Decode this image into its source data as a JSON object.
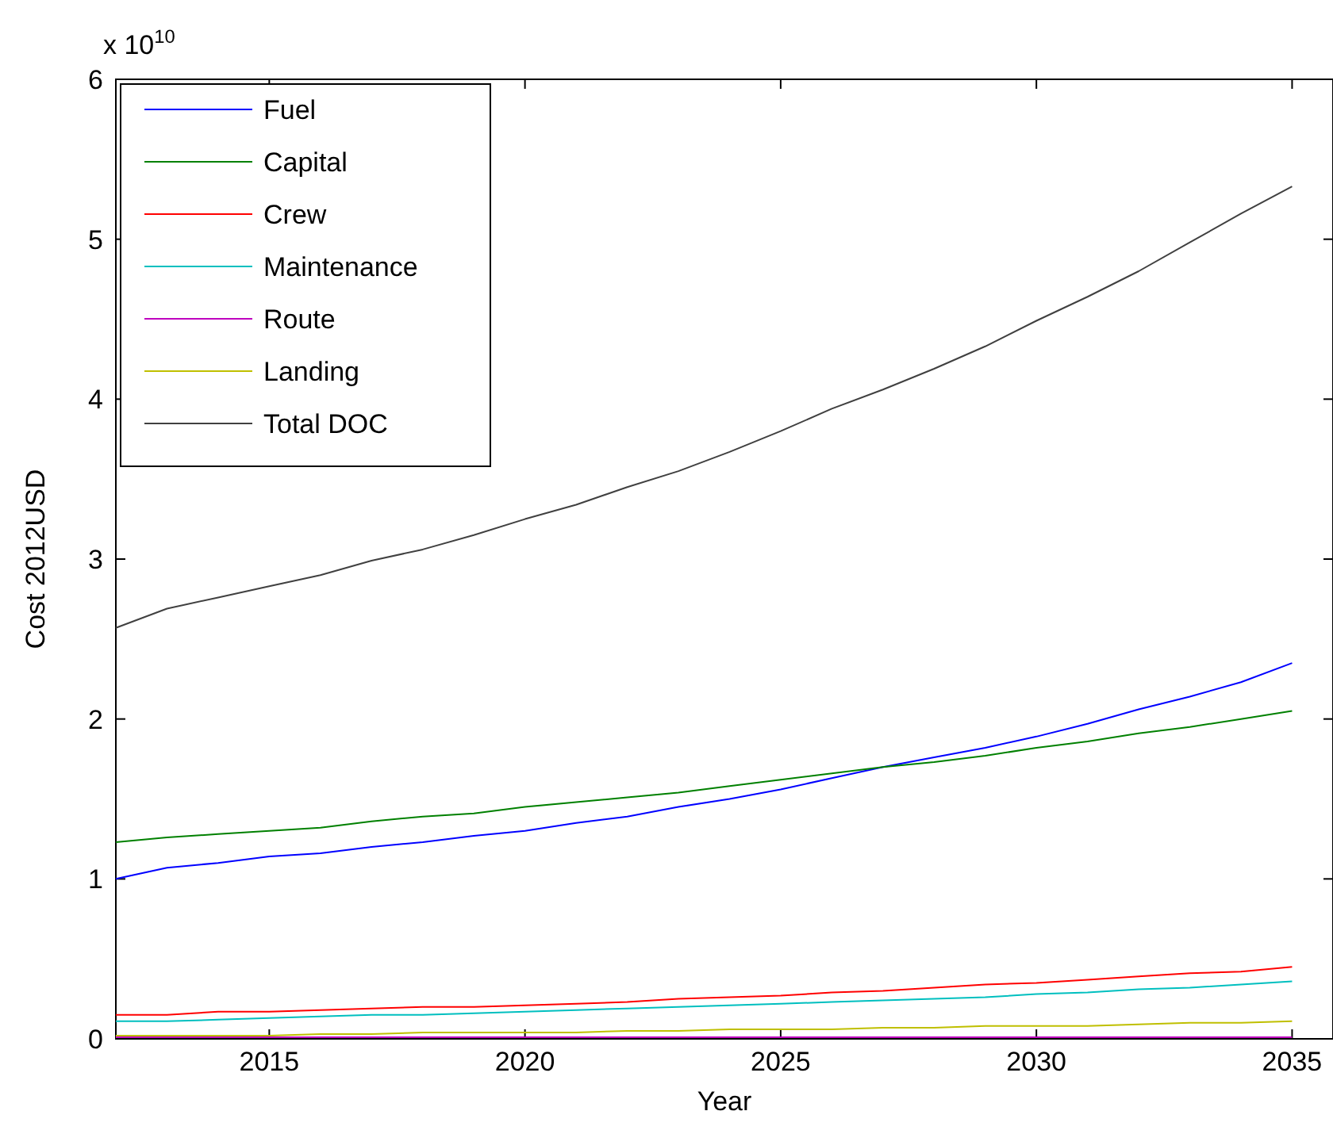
{
  "chart_data": {
    "type": "line",
    "xlabel": "Year",
    "ylabel": "Cost 2012USD",
    "annotations": [
      "x 10$^{10}$"
    ],
    "x": [
      2012,
      2013,
      2014,
      2015,
      2016,
      2017,
      2018,
      2019,
      2020,
      2021,
      2022,
      2023,
      2024,
      2025,
      2026,
      2027,
      2028,
      2029,
      2030,
      2031,
      2032,
      2033,
      2034,
      2035
    ],
    "xlim": [
      2012,
      2035.8
    ],
    "xticks": [
      2015,
      2020,
      2025,
      2030,
      2035
    ],
    "ylim": [
      0,
      6
    ],
    "yticks": [
      0,
      1,
      2,
      3,
      4,
      5,
      6
    ],
    "grid": false,
    "legend": "top left",
    "line_style": "solid",
    "marker": "none",
    "series": [
      {
        "name": "Fuel",
        "color": "#0000ff",
        "values": [
          1.0,
          1.07,
          1.1,
          1.14,
          1.16,
          1.2,
          1.23,
          1.27,
          1.3,
          1.35,
          1.39,
          1.45,
          1.5,
          1.56,
          1.63,
          1.7,
          1.76,
          1.82,
          1.89,
          1.97,
          2.06,
          2.14,
          2.23,
          2.35
        ]
      },
      {
        "name": "Capital",
        "color": "#008000",
        "values": [
          1.23,
          1.26,
          1.28,
          1.3,
          1.32,
          1.36,
          1.39,
          1.41,
          1.45,
          1.48,
          1.51,
          1.54,
          1.58,
          1.62,
          1.66,
          1.7,
          1.73,
          1.77,
          1.82,
          1.86,
          1.91,
          1.95,
          2.0,
          2.05
        ]
      },
      {
        "name": "Crew",
        "color": "#ff0000",
        "values": [
          0.15,
          0.15,
          0.17,
          0.17,
          0.18,
          0.19,
          0.2,
          0.2,
          0.21,
          0.22,
          0.23,
          0.25,
          0.26,
          0.27,
          0.29,
          0.3,
          0.32,
          0.34,
          0.35,
          0.37,
          0.39,
          0.41,
          0.42,
          0.45
        ]
      },
      {
        "name": "Maintenance",
        "color": "#00bfbf",
        "values": [
          0.11,
          0.11,
          0.12,
          0.13,
          0.14,
          0.15,
          0.15,
          0.16,
          0.17,
          0.18,
          0.19,
          0.2,
          0.21,
          0.22,
          0.23,
          0.24,
          0.25,
          0.26,
          0.28,
          0.29,
          0.31,
          0.32,
          0.34,
          0.36
        ]
      },
      {
        "name": "Route",
        "color": "#bf00bf",
        "values": [
          0.01,
          0.01,
          0.01,
          0.01,
          0.01,
          0.01,
          0.01,
          0.01,
          0.01,
          0.01,
          0.01,
          0.01,
          0.01,
          0.01,
          0.01,
          0.01,
          0.01,
          0.01,
          0.01,
          0.01,
          0.01,
          0.01,
          0.01,
          0.01
        ]
      },
      {
        "name": "Landing",
        "color": "#bfbf00",
        "values": [
          0.02,
          0.02,
          0.02,
          0.02,
          0.03,
          0.03,
          0.04,
          0.04,
          0.04,
          0.04,
          0.05,
          0.05,
          0.06,
          0.06,
          0.06,
          0.07,
          0.07,
          0.08,
          0.08,
          0.08,
          0.09,
          0.1,
          0.1,
          0.11
        ]
      },
      {
        "name": "Total DOC",
        "color": "#404040",
        "values": [
          2.57,
          2.69,
          2.76,
          2.83,
          2.9,
          2.99,
          3.06,
          3.15,
          3.25,
          3.34,
          3.45,
          3.55,
          3.67,
          3.8,
          3.94,
          4.06,
          4.19,
          4.33,
          4.49,
          4.64,
          4.8,
          4.98,
          5.16,
          5.33
        ]
      }
    ]
  }
}
